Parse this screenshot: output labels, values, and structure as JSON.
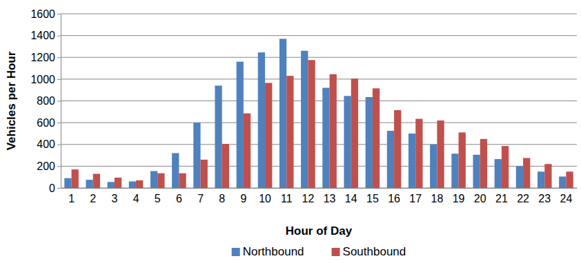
{
  "chart_data": {
    "type": "bar",
    "x_label": "Hour of Day",
    "y_label": "Vehicles per Hour",
    "categories": [
      "1",
      "2",
      "3",
      "4",
      "5",
      "6",
      "7",
      "8",
      "9",
      "10",
      "11",
      "12",
      "13",
      "14",
      "15",
      "16",
      "17",
      "18",
      "19",
      "20",
      "21",
      "22",
      "23",
      "24"
    ],
    "series": [
      {
        "name": "Northbound",
        "color": "#4f81bd",
        "values": [
          90,
          75,
          55,
          60,
          155,
          320,
          600,
          940,
          1160,
          1245,
          1370,
          1260,
          920,
          845,
          835,
          525,
          500,
          400,
          315,
          305,
          265,
          200,
          150,
          105
        ]
      },
      {
        "name": "Southbound",
        "color": "#c0504d",
        "values": [
          170,
          130,
          95,
          70,
          135,
          135,
          260,
          405,
          685,
          965,
          1030,
          1175,
          1045,
          1005,
          915,
          715,
          635,
          620,
          510,
          450,
          385,
          275,
          220,
          150
        ]
      }
    ],
    "ylim": [
      0,
      1600
    ],
    "yticks": [
      0,
      200,
      400,
      600,
      800,
      1000,
      1200,
      1400,
      1600
    ],
    "grid": true,
    "legend": "bottom"
  }
}
